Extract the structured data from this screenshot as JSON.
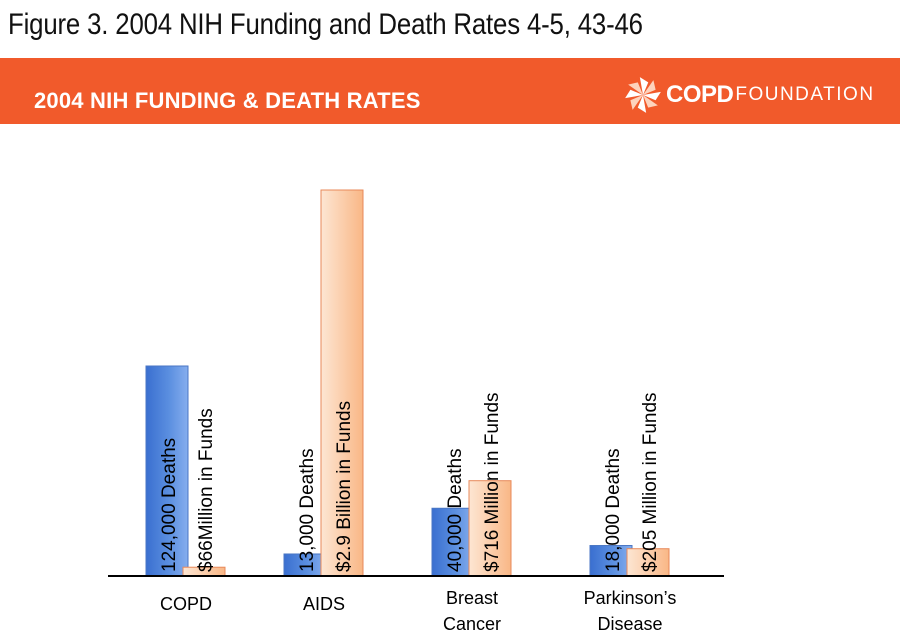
{
  "figure_title": "Figure 3. 2004 NIH Funding and Death Rates 4-5, 43-46",
  "banner": {
    "title": "2004 NIH FUNDING & DEATH RATES",
    "logo_bold": "COPD",
    "logo_light": "FOUNDATION",
    "color": "#f15a2b"
  },
  "logo_icon": "pinwheel-icon",
  "chart_data": {
    "type": "bar",
    "categories": [
      [
        "COPD"
      ],
      [
        "AIDS"
      ],
      [
        "Breast",
        "Cancer"
      ],
      [
        "Parkinson’s",
        "Disease"
      ]
    ],
    "series": [
      {
        "values": [
          124000,
          13000,
          40000,
          18000
        ],
        "labels": [
          "124,000 Deaths",
          "13,000 Deaths",
          "40,000 Deaths",
          "18,000 Deaths"
        ],
        "color": "#5b8fe0"
      },
      {
        "values": [
          66,
          2900,
          716,
          205
        ],
        "labels": [
          "$66Million  in Funds",
          "$2.9 Billion in Funds",
          "$716 Million in Funds",
          "$205 Million in Funds"
        ],
        "color": "#fbc8a0"
      }
    ],
    "title": "",
    "xlabel": "",
    "ylabel": "",
    "grid": false,
    "legend": "none"
  }
}
